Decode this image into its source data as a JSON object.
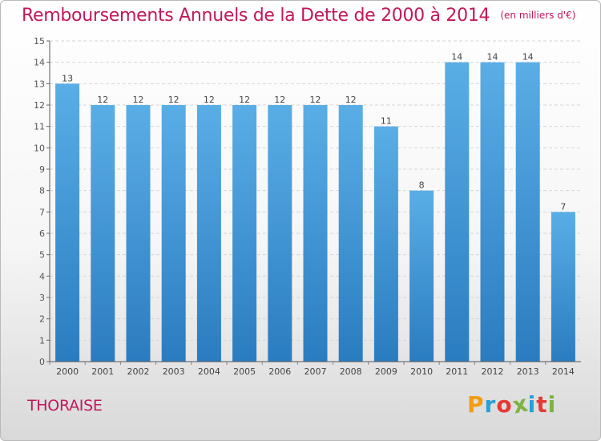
{
  "title": "Remboursements Annuels de la Dette de 2000 à 2014",
  "unit_note": "(en milliers d'€)",
  "commune": "THORAISE",
  "logo": {
    "letters": [
      "P",
      "r",
      "o",
      "x",
      "i",
      "t",
      "i"
    ],
    "colors": [
      "#f39c12",
      "#27a0d7",
      "#e53935",
      "#7cb342",
      "#27a0d7",
      "#e53935",
      "#7cb342"
    ]
  },
  "chart_data": {
    "type": "bar",
    "categories": [
      "2000",
      "2001",
      "2002",
      "2003",
      "2004",
      "2005",
      "2006",
      "2007",
      "2008",
      "2009",
      "2010",
      "2011",
      "2012",
      "2013",
      "2014"
    ],
    "values": [
      13,
      12,
      12,
      12,
      12,
      12,
      12,
      12,
      12,
      11,
      8,
      14,
      14,
      14,
      7
    ],
    "ylim": [
      0,
      15
    ],
    "yticks": [
      0,
      1,
      2,
      3,
      4,
      5,
      6,
      7,
      8,
      9,
      10,
      11,
      12,
      13,
      14,
      15
    ],
    "grid": true,
    "bar_color_top": "#5aaee6",
    "bar_color_bottom": "#2a7cc0"
  }
}
